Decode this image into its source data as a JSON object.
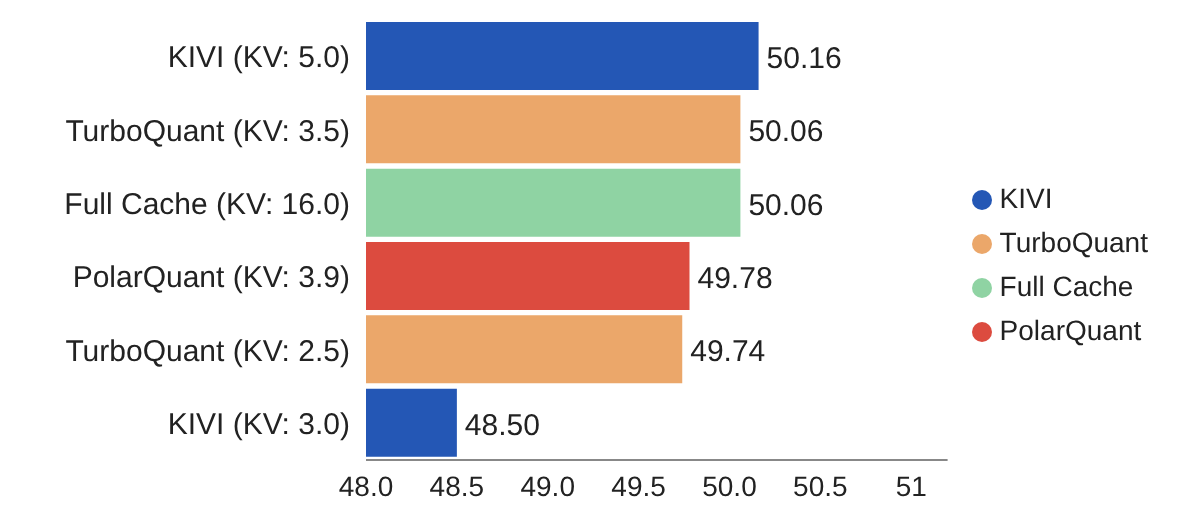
{
  "chart_data": {
    "type": "bar",
    "orientation": "horizontal",
    "stacked": true,
    "categories": [
      "KIVI (KV: 5.0)",
      "TurboQuant (KV: 3.5)",
      "Full Cache (KV: 16.0)",
      "PolarQuant (KV: 3.9)",
      "TurboQuant (KV: 2.5)",
      "KIVI (KV: 3.0)"
    ],
    "series": [
      {
        "name": "KIVI",
        "color": "#2457b5",
        "values": [
          50.16,
          null,
          null,
          null,
          null,
          48.5
        ],
        "value_labels": [
          "50.16",
          null,
          null,
          null,
          null,
          "48.50"
        ]
      },
      {
        "name": "TurboQuant",
        "color": "#eba76a",
        "values": [
          null,
          50.06,
          null,
          null,
          49.74,
          null
        ],
        "value_labels": [
          null,
          "50.06",
          null,
          null,
          "49.74",
          null
        ]
      },
      {
        "name": "Full Cache",
        "color": "#8fd3a3",
        "values": [
          null,
          null,
          50.06,
          null,
          null,
          null
        ],
        "value_labels": [
          null,
          null,
          "50.06",
          null,
          null,
          null
        ]
      },
      {
        "name": "PolarQuant",
        "color": "#dc4b3f",
        "values": [
          null,
          null,
          null,
          49.78,
          null,
          null
        ],
        "value_labels": [
          null,
          null,
          null,
          "49.78",
          null,
          null
        ]
      }
    ],
    "xlim": [
      48,
      51.2
    ],
    "xticks": [
      {
        "value": 48,
        "label": "48.0"
      },
      48.5,
      {
        "value": 49,
        "label": "49.0"
      },
      49.5,
      {
        "value": 50,
        "label": "50.0"
      },
      50.5,
      51
    ],
    "legend": "right",
    "grid": false
  }
}
